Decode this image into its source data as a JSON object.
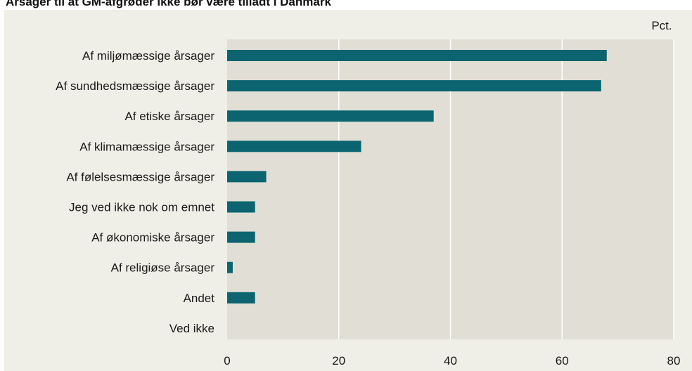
{
  "title": "Årsager til at GM-afgrøder ikke bør være tilladt i Danmark",
  "colors": {
    "bar": "#0b6470",
    "plot_bg": "#e1dfd5",
    "outer_bg": "#efeee7",
    "grid": "#ffffff"
  },
  "chart_data": {
    "type": "bar",
    "orientation": "horizontal",
    "unit_label": "Pct.",
    "categories": [
      "Af miljømæssige årsager",
      "Af sundhedsmæssige årsager",
      "Af etiske årsager",
      "Af klimamæssige årsager",
      "Af følelsesmæssige årsager",
      "Jeg ved ikke nok om emnet",
      "Af økonomiske årsager",
      "Af religiøse årsager",
      "Andet",
      "Ved ikke"
    ],
    "values": [
      68,
      67,
      37,
      24,
      7,
      5,
      5,
      1,
      5,
      0
    ],
    "xlim": [
      0,
      80
    ],
    "xticks": [
      "0",
      "20",
      "40",
      "60",
      "80"
    ],
    "grid": true
  }
}
